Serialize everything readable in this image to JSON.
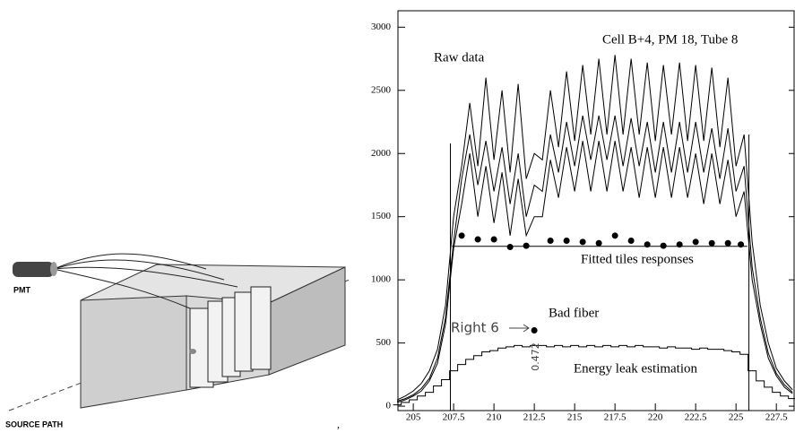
{
  "diagram": {
    "labels": [
      "PMT",
      "SOURCE PATH"
    ],
    "separator": ","
  },
  "chart_data": {
    "type": "line",
    "xlim": [
      204.05,
      228.6
    ],
    "ylim": [
      -35,
      3130
    ],
    "xticks": [
      205,
      207.5,
      210,
      212.5,
      215,
      217.5,
      220,
      222.5,
      225,
      227.5
    ],
    "yticks": [
      0,
      500,
      1000,
      1500,
      2000,
      2500,
      3000
    ],
    "annotations": [
      "Cell B+4, PM 18, Tube 8",
      "Raw data",
      "Fitted tiles responses",
      "Bad fiber",
      "Right 6",
      "0.472",
      "Energy leak estimation"
    ],
    "x": [
      204,
      204.5,
      205,
      205.5,
      206,
      206.5,
      207,
      207.5,
      208,
      208.5,
      209,
      209.5,
      210,
      210.5,
      211,
      211.5,
      212,
      212.5,
      213,
      213.5,
      214,
      214.5,
      215,
      215.5,
      216,
      216.5,
      217,
      217.5,
      218,
      218.5,
      219,
      219.5,
      220,
      220.5,
      221,
      221.5,
      222,
      222.5,
      223,
      223.5,
      224,
      224.5,
      225,
      225.5,
      226,
      226.5,
      227,
      227.5,
      228,
      228.5
    ],
    "series": [
      {
        "color": "#000000",
        "mode": "line",
        "values": [
          50,
          80,
          120,
          180,
          280,
          450,
          800,
          1500,
          1900,
          2400,
          1900,
          2600,
          1950,
          2500,
          1850,
          2550,
          1800,
          2000,
          1950,
          2500,
          2050,
          2650,
          2100,
          2700,
          2150,
          2750,
          2150,
          2780,
          2150,
          2750,
          2150,
          2720,
          2100,
          2700,
          2150,
          2720,
          2100,
          2700,
          2100,
          2680,
          2050,
          2600,
          1900,
          2150,
          1300,
          800,
          500,
          300,
          200,
          130
        ]
      },
      {
        "color": "#000000",
        "mode": "line",
        "values": [
          40,
          60,
          90,
          140,
          220,
          380,
          700,
          1300,
          1800,
          2150,
          1750,
          2100,
          1700,
          2050,
          1600,
          2000,
          1500,
          1750,
          1700,
          2150,
          1850,
          2250,
          1900,
          2300,
          1950,
          2300,
          1950,
          2300,
          1900,
          2280,
          1900,
          2250,
          1850,
          2250,
          1850,
          2250,
          1850,
          2250,
          1850,
          2200,
          1800,
          2200,
          1700,
          1900,
          1100,
          700,
          420,
          260,
          170,
          110
        ]
      },
      {
        "color": "#000000",
        "mode": "line",
        "values": [
          30,
          50,
          80,
          120,
          200,
          340,
          650,
          1250,
          1600,
          2000,
          1500,
          1900,
          1450,
          1850,
          1350,
          1800,
          1350,
          1500,
          1500,
          1950,
          1650,
          2050,
          1700,
          2100,
          1700,
          2100,
          1700,
          2100,
          1700,
          2050,
          1650,
          2050,
          1650,
          2050,
          1650,
          2050,
          1650,
          2000,
          1600,
          2000,
          1600,
          1950,
          1500,
          1700,
          1000,
          650,
          380,
          240,
          150,
          100
        ]
      },
      {
        "color": "#000000",
        "mode": "step",
        "values": [
          10,
          30,
          50,
          80,
          110,
          160,
          210,
          280,
          330,
          370,
          400,
          430,
          440,
          460,
          470,
          480,
          470,
          480,
          480,
          470,
          480,
          470,
          480,
          470,
          480,
          470,
          480,
          470,
          480,
          470,
          480,
          470,
          470,
          460,
          470,
          460,
          460,
          450,
          460,
          450,
          450,
          440,
          430,
          410,
          280,
          200,
          150,
          110,
          80,
          60
        ]
      },
      {
        "color": "#000000",
        "mode": "line",
        "x": [
          207.4,
          225.7
        ],
        "values": [
          1265,
          1265
        ]
      },
      {
        "color": "#000000",
        "mode": "markers",
        "x": [
          208,
          209,
          210,
          211,
          212,
          213.5,
          214.5,
          215.5,
          216.5,
          217.5,
          218.5,
          219.5,
          220.5,
          221.5,
          222.5,
          223.5,
          224.5,
          225.3
        ],
        "values": [
          1350,
          1320,
          1320,
          1260,
          1270,
          1310,
          1310,
          1300,
          1290,
          1350,
          1310,
          1280,
          1270,
          1280,
          1300,
          1290,
          1290,
          1280
        ]
      },
      {
        "color": "#000000",
        "mode": "markers",
        "x": [
          212.5
        ],
        "values": [
          600
        ]
      }
    ],
    "vlines": [
      {
        "x": 207.3,
        "y": 2080
      },
      {
        "x": 225.8,
        "y": 2150
      }
    ]
  }
}
